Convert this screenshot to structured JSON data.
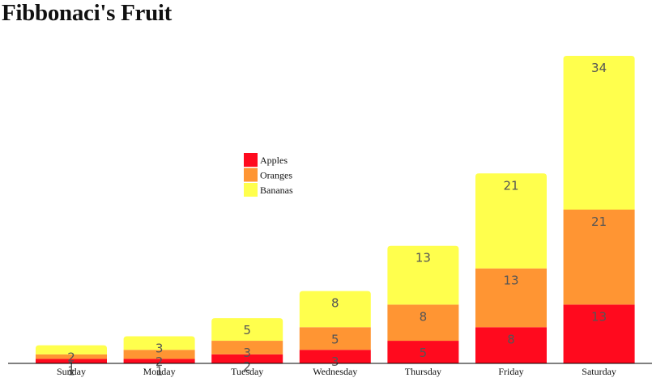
{
  "chart_data": {
    "type": "bar",
    "stacked": true,
    "title": "Fibbonaci's Fruit",
    "xlabel": "",
    "ylabel": "",
    "categories": [
      "Sunday",
      "Monday",
      "Tuesday",
      "Wednesday",
      "Thursday",
      "Friday",
      "Saturday"
    ],
    "series": [
      {
        "name": "Apples",
        "color": "#ff0a1e",
        "values": [
          1,
          1,
          2,
          3,
          5,
          8,
          13
        ]
      },
      {
        "name": "Oranges",
        "color": "#ff9533",
        "values": [
          1,
          2,
          3,
          5,
          8,
          13,
          21
        ]
      },
      {
        "name": "Bananas",
        "color": "#ffff4d",
        "values": [
          2,
          3,
          5,
          8,
          13,
          21,
          34
        ]
      }
    ],
    "ylim": [
      0,
      68
    ],
    "grid": false,
    "legend_position": "center"
  }
}
